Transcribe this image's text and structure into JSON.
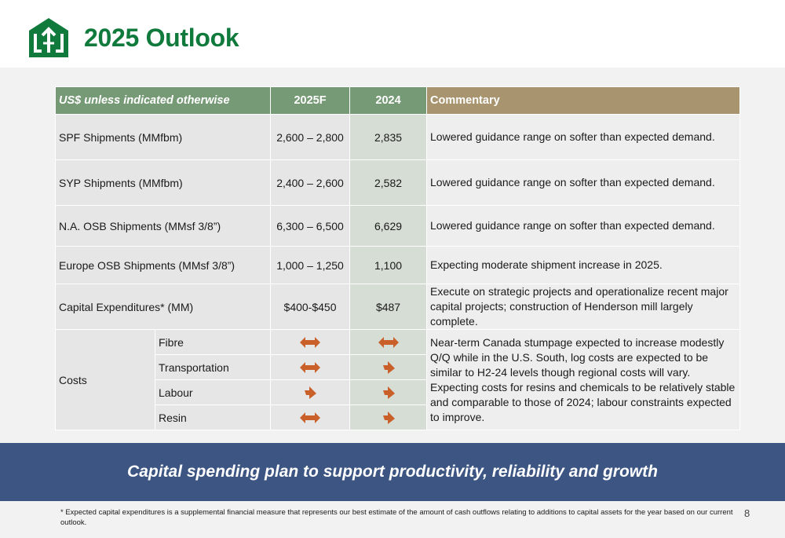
{
  "header": {
    "title": "2025 Outlook",
    "logo_icon": "company-logo-icon",
    "title_color": "#0f7a3c"
  },
  "table": {
    "headers": {
      "units": "US$ unless indicated otherwise",
      "y2025": "2025F",
      "y2024": "2024",
      "commentary": "Commentary"
    },
    "rows": [
      {
        "label": "SPF Shipments (MMfbm)",
        "v2025": "2,600 – 2,800",
        "v2024": "2,835",
        "commentary": "Lowered guidance range on softer than expected demand."
      },
      {
        "label": "SYP Shipments (MMfbm)",
        "v2025": "2,400 – 2,600",
        "v2024": "2,582",
        "commentary": "Lowered guidance range on softer than expected demand."
      },
      {
        "label": "N.A. OSB Shipments (MMsf 3/8”)",
        "v2025": "6,300 – 6,500",
        "v2024": "6,629",
        "commentary": "Lowered guidance range on softer than expected demand."
      },
      {
        "label": "Europe OSB Shipments (MMsf 3/8”)",
        "v2025": "1,000 – 1,250",
        "v2024": "1,100",
        "commentary": "Expecting moderate shipment increase in 2025."
      },
      {
        "label": "Capital Expenditures* (MM)",
        "v2025": "$400-$450",
        "v2024": "$487",
        "commentary": "Execute on strategic projects and operationalize recent major capital projects; construction of Henderson mill largely complete."
      }
    ],
    "costs": {
      "label": "Costs",
      "items": [
        {
          "name": "Fibre",
          "y2025": "double-arrow-icon",
          "y2024": "double-arrow-icon"
        },
        {
          "name": "Transportation",
          "y2025": "double-arrow-icon",
          "y2024": "diagonal-up-arrow-icon"
        },
        {
          "name": "Labour",
          "y2025": "diagonal-up-arrow-icon",
          "y2024": "diagonal-up-arrow-icon"
        },
        {
          "name": "Resin",
          "y2025": "double-arrow-icon",
          "y2024": "diagonal-up-arrow-icon"
        }
      ],
      "commentary_line1": "Near-term Canada stumpage expected to increase modestly Q/Q while in the U.S. South, log costs are expected to be similar to H2-24 levels though regional costs will vary.",
      "commentary_line2": "Expecting costs for resins and chemicals to be relatively stable and comparable to those of 2024; labour constraints expected to improve.",
      "arrow_color": "#c9602a"
    }
  },
  "banner": {
    "text": "Capital spending plan to support productivity, reliability and growth",
    "color": "#3d5582"
  },
  "footnote": "* Expected capital expenditures is a supplemental financial measure that represents our best estimate of the amount of cash outflows relating to additions to capital assets for the year based on our current outlook.",
  "page_number": "8"
}
